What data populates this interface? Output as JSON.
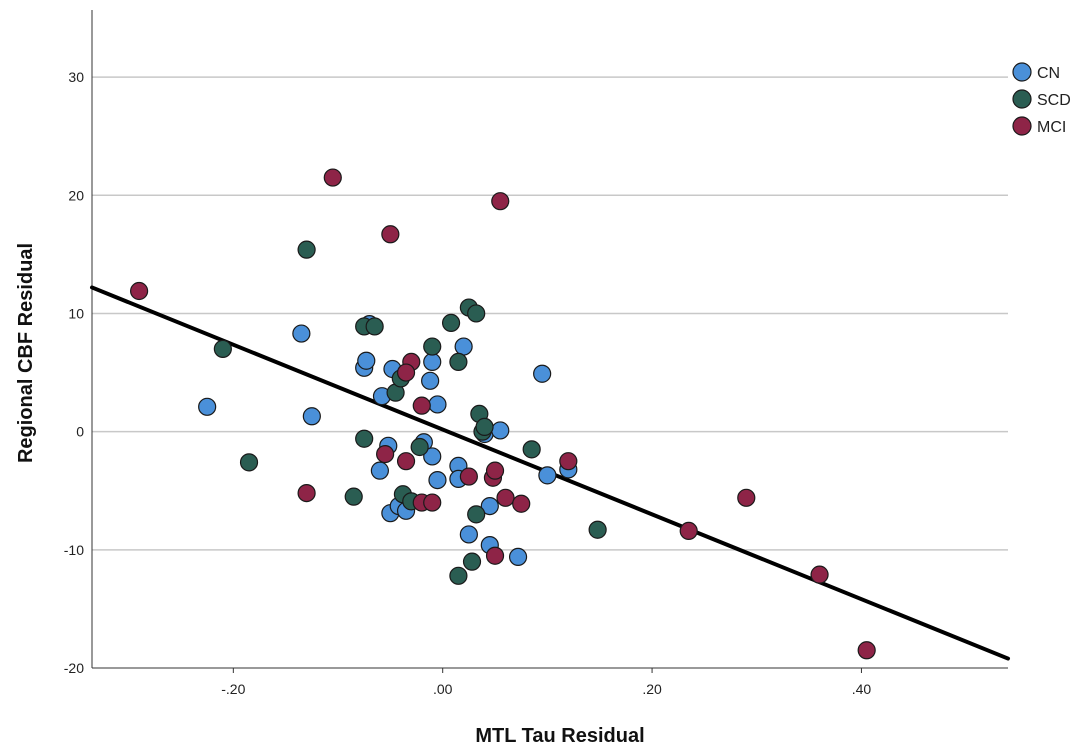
{
  "chart_data": {
    "type": "scatter",
    "title": "",
    "xlabel": "MTL Tau Residual",
    "ylabel": "Regional CBF Residual",
    "xlim": [
      -0.335,
      0.54
    ],
    "ylim": [
      -20,
      35
    ],
    "x_ticks": [
      {
        "value": -0.2,
        "label": "-.20"
      },
      {
        "value": 0.0,
        "label": ".00"
      },
      {
        "value": 0.2,
        "label": ".20"
      },
      {
        "value": 0.4,
        "label": ".40"
      }
    ],
    "y_ticks": [
      {
        "value": -20,
        "label": "-20"
      },
      {
        "value": -10,
        "label": "-10"
      },
      {
        "value": 0,
        "label": "0"
      },
      {
        "value": 10,
        "label": "10"
      },
      {
        "value": 20,
        "label": "20"
      },
      {
        "value": 30,
        "label": "30"
      }
    ],
    "grid": "horizontal",
    "legend": "top-right",
    "fit_line": {
      "x": [
        -0.335,
        0.54
      ],
      "y": [
        12.2,
        -19.2
      ],
      "color": "#000000"
    },
    "series": [
      {
        "name": "CN",
        "color": "#4a90d9",
        "points": [
          [
            -0.225,
            2.1
          ],
          [
            -0.125,
            1.3
          ],
          [
            -0.135,
            8.3
          ],
          [
            -0.07,
            9.1
          ],
          [
            -0.075,
            5.4
          ],
          [
            -0.073,
            6.0
          ],
          [
            -0.058,
            3.0
          ],
          [
            -0.04,
            4.6
          ],
          [
            -0.048,
            5.3
          ],
          [
            -0.012,
            4.3
          ],
          [
            -0.01,
            5.9
          ],
          [
            0.02,
            7.2
          ],
          [
            -0.005,
            2.3
          ],
          [
            -0.06,
            -3.3
          ],
          [
            -0.052,
            -1.2
          ],
          [
            -0.018,
            -0.9
          ],
          [
            -0.01,
            -2.1
          ],
          [
            -0.005,
            -4.1
          ],
          [
            0.015,
            -2.9
          ],
          [
            0.015,
            -4.0
          ],
          [
            0.04,
            -0.2
          ],
          [
            0.055,
            0.1
          ],
          [
            0.095,
            4.9
          ],
          [
            0.1,
            -3.7
          ],
          [
            0.12,
            -3.2
          ],
          [
            -0.05,
            -6.9
          ],
          [
            -0.042,
            -6.3
          ],
          [
            -0.035,
            -6.7
          ],
          [
            0.025,
            -8.7
          ],
          [
            0.045,
            -6.3
          ],
          [
            0.045,
            -9.6
          ],
          [
            0.072,
            -10.6
          ]
        ]
      },
      {
        "name": "SCD",
        "color": "#2a5d52",
        "points": [
          [
            -0.21,
            7.0
          ],
          [
            -0.185,
            -2.6
          ],
          [
            -0.13,
            15.4
          ],
          [
            -0.075,
            8.9
          ],
          [
            -0.065,
            8.9
          ],
          [
            -0.075,
            -0.6
          ],
          [
            -0.085,
            -5.5
          ],
          [
            -0.038,
            -5.3
          ],
          [
            -0.045,
            3.3
          ],
          [
            -0.04,
            4.5
          ],
          [
            -0.03,
            -5.9
          ],
          [
            -0.022,
            -1.3
          ],
          [
            -0.01,
            7.2
          ],
          [
            0.008,
            9.2
          ],
          [
            0.015,
            5.9
          ],
          [
            0.025,
            10.5
          ],
          [
            0.032,
            10.0
          ],
          [
            0.035,
            1.5
          ],
          [
            0.038,
            0.0
          ],
          [
            0.04,
            0.4
          ],
          [
            0.032,
            -7.0
          ],
          [
            0.085,
            -1.5
          ],
          [
            0.148,
            -8.3
          ],
          [
            0.015,
            -12.2
          ],
          [
            0.028,
            -11.0
          ]
        ]
      },
      {
        "name": "MCI",
        "color": "#8e2447",
        "points": [
          [
            -0.29,
            11.9
          ],
          [
            -0.105,
            21.5
          ],
          [
            -0.05,
            16.7
          ],
          [
            0.055,
            19.5
          ],
          [
            -0.13,
            -5.2
          ],
          [
            -0.055,
            -1.9
          ],
          [
            -0.035,
            -2.5
          ],
          [
            -0.03,
            5.9
          ],
          [
            -0.035,
            5.0
          ],
          [
            -0.02,
            2.2
          ],
          [
            -0.02,
            -6.0
          ],
          [
            -0.01,
            -6.0
          ],
          [
            0.025,
            -3.8
          ],
          [
            0.048,
            -3.9
          ],
          [
            0.05,
            -3.3
          ],
          [
            0.06,
            -5.6
          ],
          [
            0.075,
            -6.1
          ],
          [
            0.05,
            -10.5
          ],
          [
            0.12,
            -2.5
          ],
          [
            0.235,
            -8.4
          ],
          [
            0.29,
            -5.6
          ],
          [
            0.36,
            -12.1
          ],
          [
            0.405,
            -18.5
          ]
        ]
      }
    ]
  }
}
